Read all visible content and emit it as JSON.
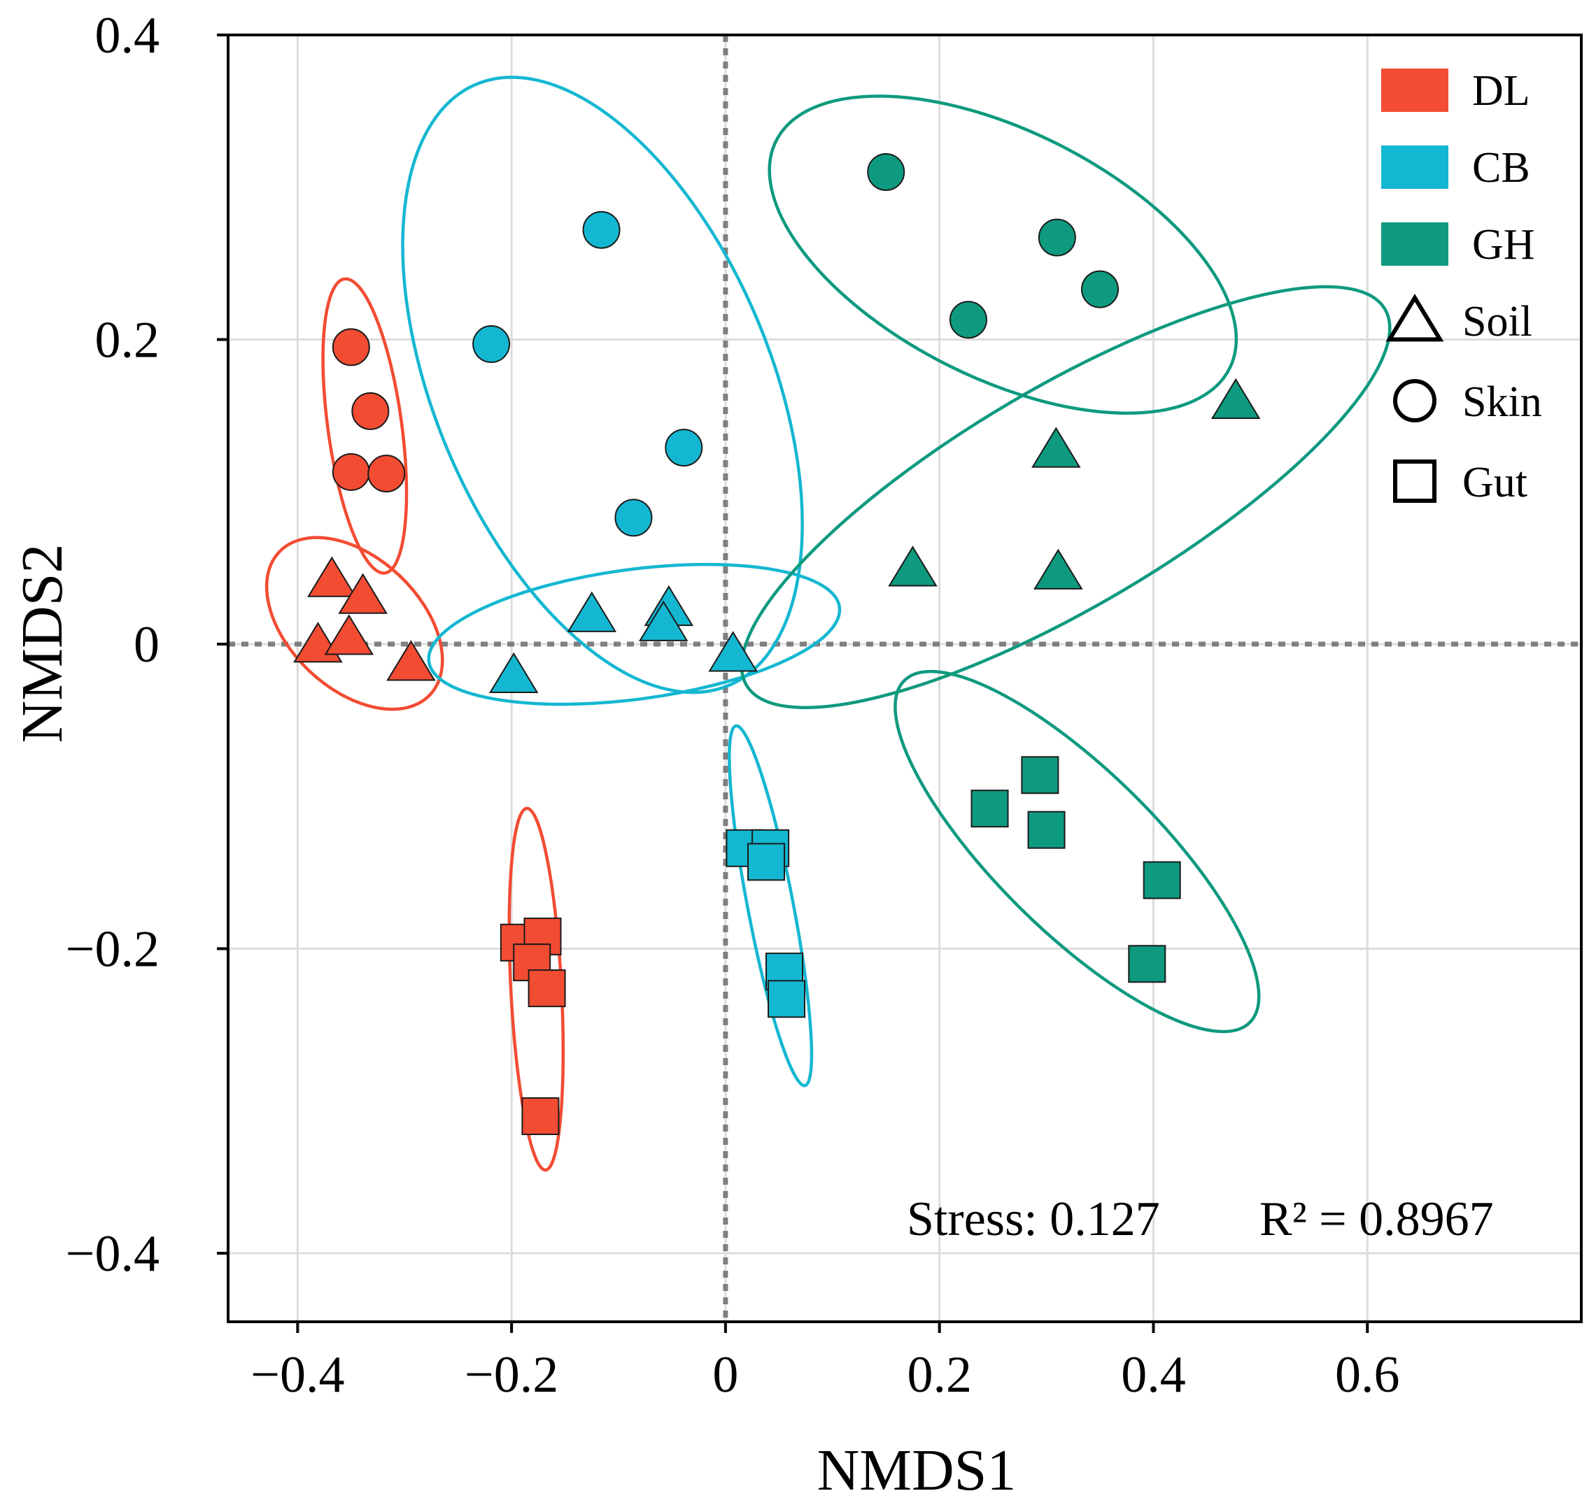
{
  "chart_data": {
    "type": "scatter",
    "title": "",
    "xlabel": "NMDS1",
    "ylabel": "NMDS2",
    "xlim": [
      -0.465,
      0.8
    ],
    "ylim": [
      -0.445,
      0.4
    ],
    "xticks": [
      -0.4,
      -0.2,
      0,
      0.2,
      0.4,
      0.6
    ],
    "xtick_labels": [
      "−0.4",
      "−0.2",
      "0",
      "0.2",
      "0.4",
      "0.6"
    ],
    "yticks": [
      -0.4,
      -0.2,
      0,
      0.2,
      0.4
    ],
    "ytick_labels": [
      "−0.4",
      "−0.2",
      "0",
      "0.2",
      "0.4"
    ],
    "grid": true,
    "zero_lines": true,
    "legend_position": "top-right",
    "groups": [
      {
        "name": "DL",
        "color": "#F24C33"
      },
      {
        "name": "CB",
        "color": "#14B7D1"
      },
      {
        "name": "GH",
        "color": "#0E9A7F"
      }
    ],
    "shapes": [
      {
        "name": "Soil",
        "marker": "triangle"
      },
      {
        "name": "Skin",
        "marker": "circle"
      },
      {
        "name": "Gut",
        "marker": "square"
      }
    ],
    "series": [
      {
        "group": "DL",
        "type": "Skin",
        "points": [
          [
            -0.35,
            0.195
          ],
          [
            -0.332,
            0.153
          ],
          [
            -0.35,
            0.113
          ],
          [
            -0.317,
            0.112
          ]
        ]
      },
      {
        "group": "DL",
        "type": "Soil",
        "points": [
          [
            -0.368,
            0.043
          ],
          [
            -0.339,
            0.032
          ],
          [
            -0.381,
            0.0
          ],
          [
            -0.352,
            0.005
          ],
          [
            -0.294,
            -0.012
          ]
        ]
      },
      {
        "group": "DL",
        "type": "Gut",
        "points": [
          [
            -0.193,
            -0.196
          ],
          [
            -0.171,
            -0.192
          ],
          [
            -0.181,
            -0.209
          ],
          [
            -0.167,
            -0.226
          ],
          [
            -0.173,
            -0.31
          ]
        ]
      },
      {
        "group": "CB",
        "type": "Skin",
        "points": [
          [
            -0.116,
            0.272
          ],
          [
            -0.219,
            0.197
          ],
          [
            -0.039,
            0.129
          ],
          [
            -0.086,
            0.083
          ]
        ]
      },
      {
        "group": "CB",
        "type": "Soil",
        "points": [
          [
            -0.125,
            0.02
          ],
          [
            -0.053,
            0.024
          ],
          [
            -0.058,
            0.014
          ],
          [
            0.007,
            -0.006
          ],
          [
            -0.198,
            -0.02
          ]
        ]
      },
      {
        "group": "CB",
        "type": "Gut",
        "points": [
          [
            0.018,
            -0.134
          ],
          [
            0.042,
            -0.134
          ],
          [
            0.038,
            -0.143
          ],
          [
            0.055,
            -0.215
          ],
          [
            0.057,
            -0.233
          ]
        ]
      },
      {
        "group": "GH",
        "type": "Skin",
        "points": [
          [
            0.15,
            0.31
          ],
          [
            0.31,
            0.267
          ],
          [
            0.35,
            0.233
          ],
          [
            0.227,
            0.213
          ]
        ]
      },
      {
        "group": "GH",
        "type": "Soil",
        "points": [
          [
            0.477,
            0.16
          ],
          [
            0.309,
            0.128
          ],
          [
            0.175,
            0.05
          ],
          [
            0.311,
            0.048
          ]
        ]
      },
      {
        "group": "GH",
        "type": "Gut",
        "points": [
          [
            0.294,
            -0.086
          ],
          [
            0.247,
            -0.108
          ],
          [
            0.3,
            -0.122
          ],
          [
            0.408,
            -0.155
          ],
          [
            0.394,
            -0.21
          ]
        ]
      }
    ],
    "ellipses": [
      {
        "group": "DL",
        "type": "Skin"
      },
      {
        "group": "DL",
        "type": "Soil"
      },
      {
        "group": "DL",
        "type": "Gut"
      },
      {
        "group": "CB",
        "type": "Skin"
      },
      {
        "group": "CB",
        "type": "Soil"
      },
      {
        "group": "CB",
        "type": "Gut"
      },
      {
        "group": "GH",
        "type": "Skin"
      },
      {
        "group": "GH",
        "type": "Soil"
      },
      {
        "group": "GH",
        "type": "Gut"
      }
    ],
    "annotations": {
      "stress": "Stress: 0.127",
      "r2": "R² = 0.8967"
    }
  }
}
